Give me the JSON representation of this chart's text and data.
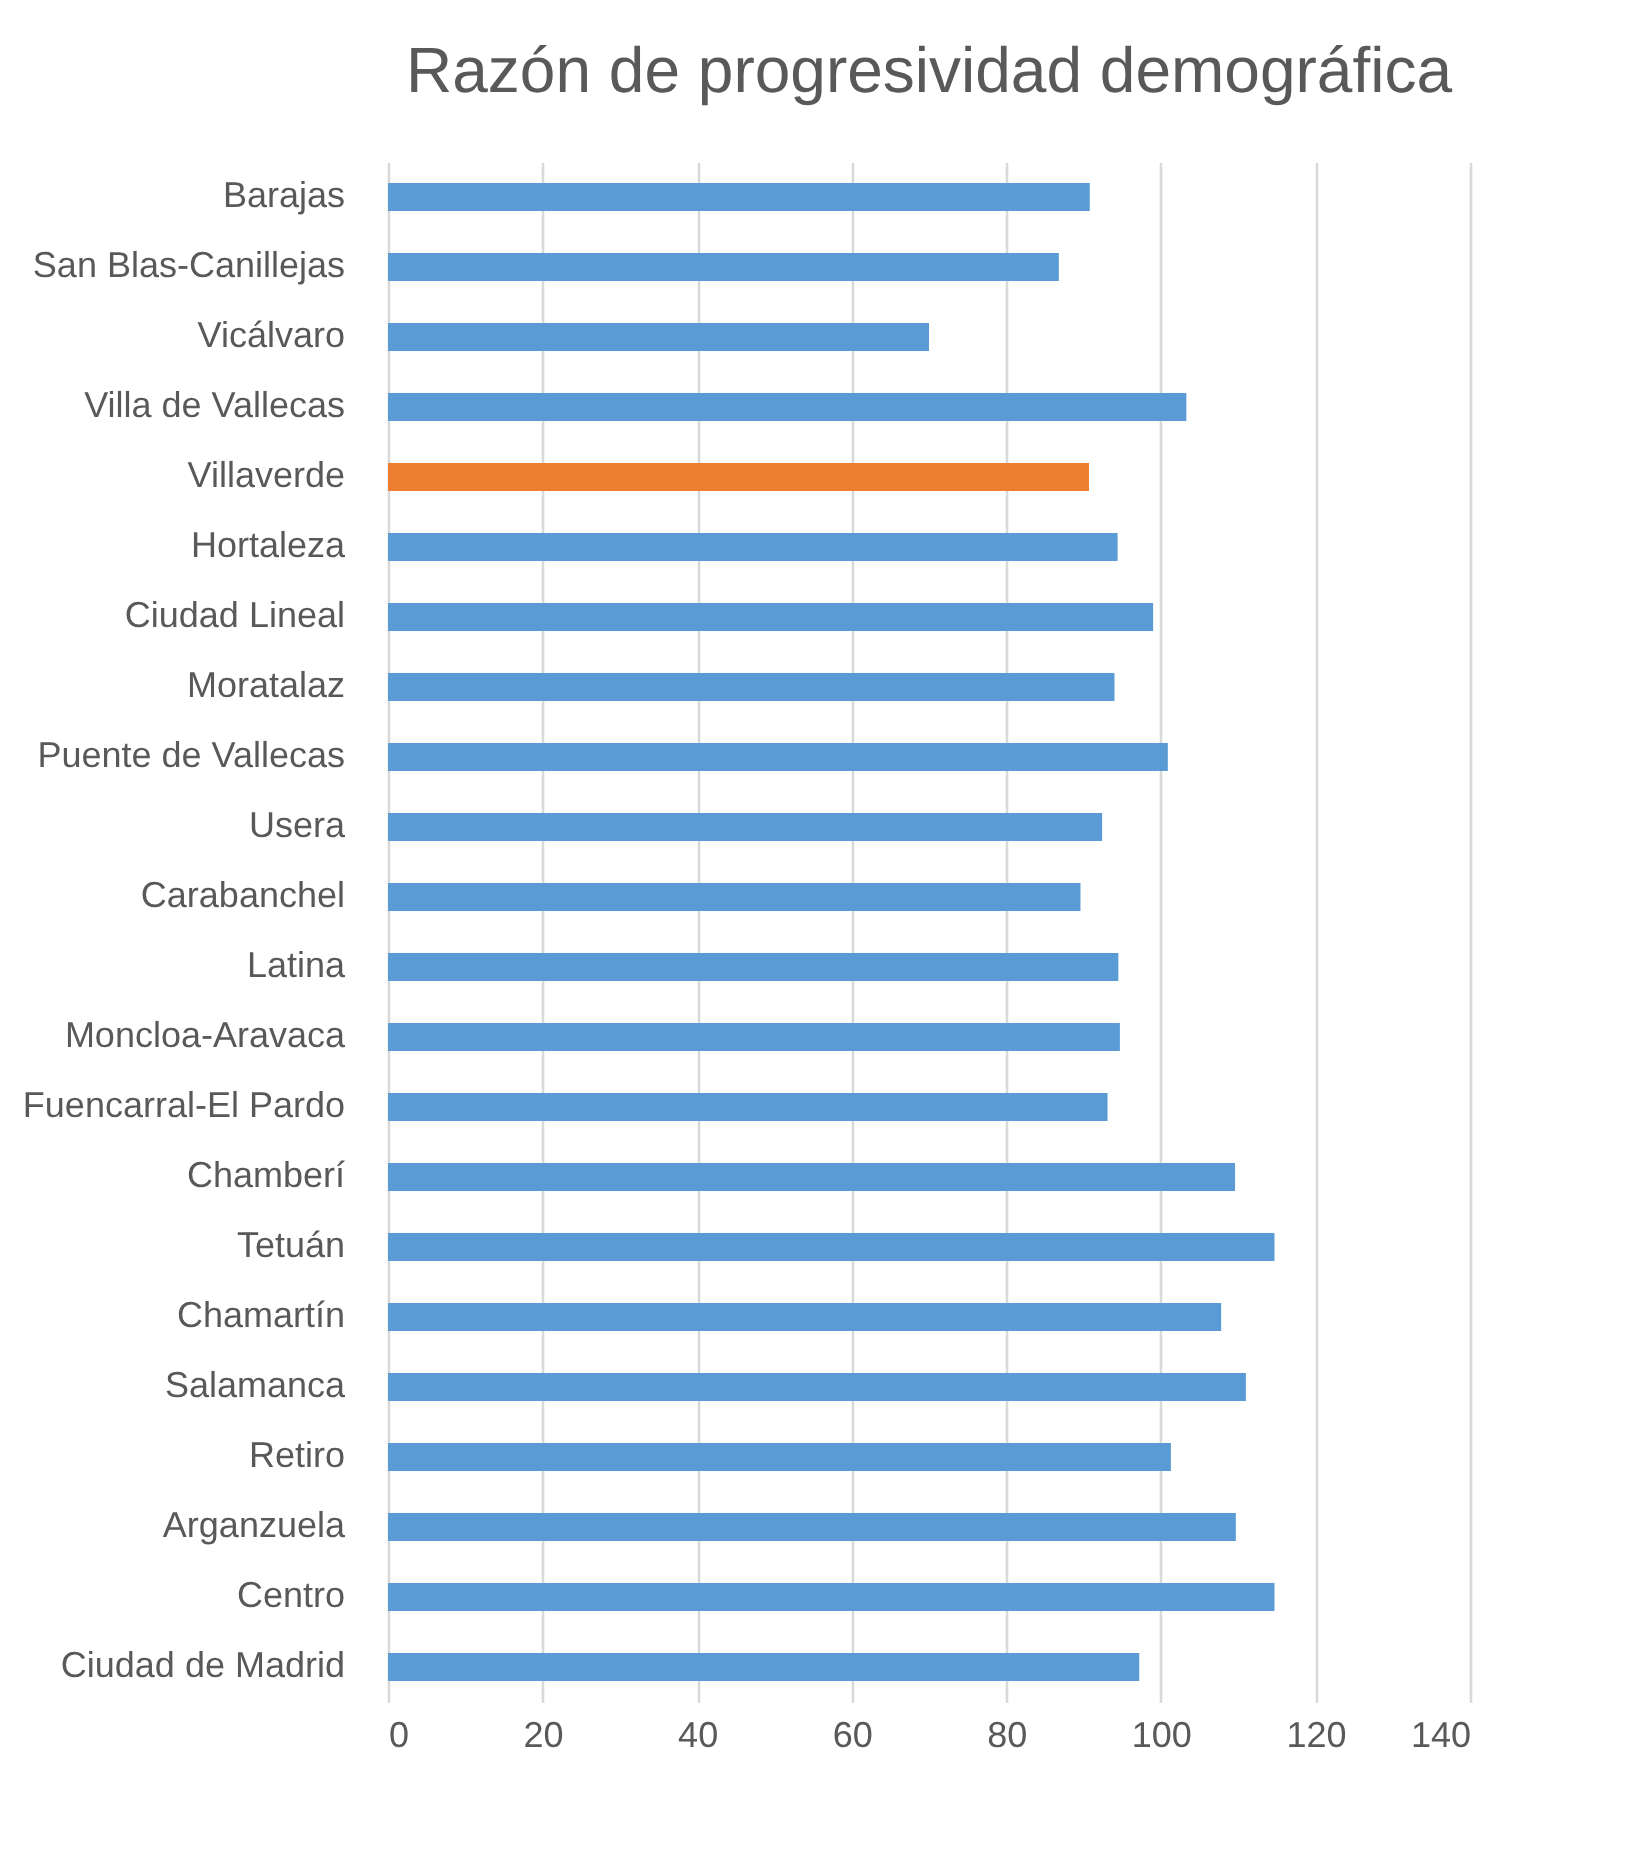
{
  "chart_data": {
    "type": "bar",
    "orientation": "horizontal",
    "title": "Razón de progresividad demográfica",
    "categories": [
      "Barajas",
      "San Blas-Canillejas",
      "Vicálvaro",
      "Villa de Vallecas",
      "Villaverde",
      "Hortaleza",
      "Ciudad Lineal",
      "Moratalaz",
      "Puente de Vallecas",
      "Usera",
      "Carabanchel",
      "Latina",
      "Moncloa-Aravaca",
      "Fuencarral-El Pardo",
      "Chamberí",
      "Tetuán",
      "Chamartín",
      "Salamanca",
      "Retiro",
      "Arganzuela",
      "Centro",
      "Ciudad de Madrid"
    ],
    "values": [
      90.8,
      86.8,
      70.0,
      103.3,
      90.7,
      94.4,
      99.0,
      94.0,
      100.9,
      92.4,
      89.6,
      94.5,
      94.7,
      93.1,
      109.6,
      114.7,
      107.8,
      111.0,
      101.3,
      109.7,
      114.7,
      97.2
    ],
    "colors": [
      "#5b9bd5",
      "#5b9bd5",
      "#5b9bd5",
      "#5b9bd5",
      "#ed7d31",
      "#5b9bd5",
      "#5b9bd5",
      "#5b9bd5",
      "#5b9bd5",
      "#5b9bd5",
      "#5b9bd5",
      "#5b9bd5",
      "#5b9bd5",
      "#5b9bd5",
      "#5b9bd5",
      "#5b9bd5",
      "#5b9bd5",
      "#5b9bd5",
      "#5b9bd5",
      "#5b9bd5",
      "#5b9bd5",
      "#5b9bd5"
    ],
    "xlim": [
      0,
      140
    ],
    "xticks": [
      0,
      20,
      40,
      60,
      80,
      100,
      120,
      140
    ],
    "grid": "x"
  }
}
